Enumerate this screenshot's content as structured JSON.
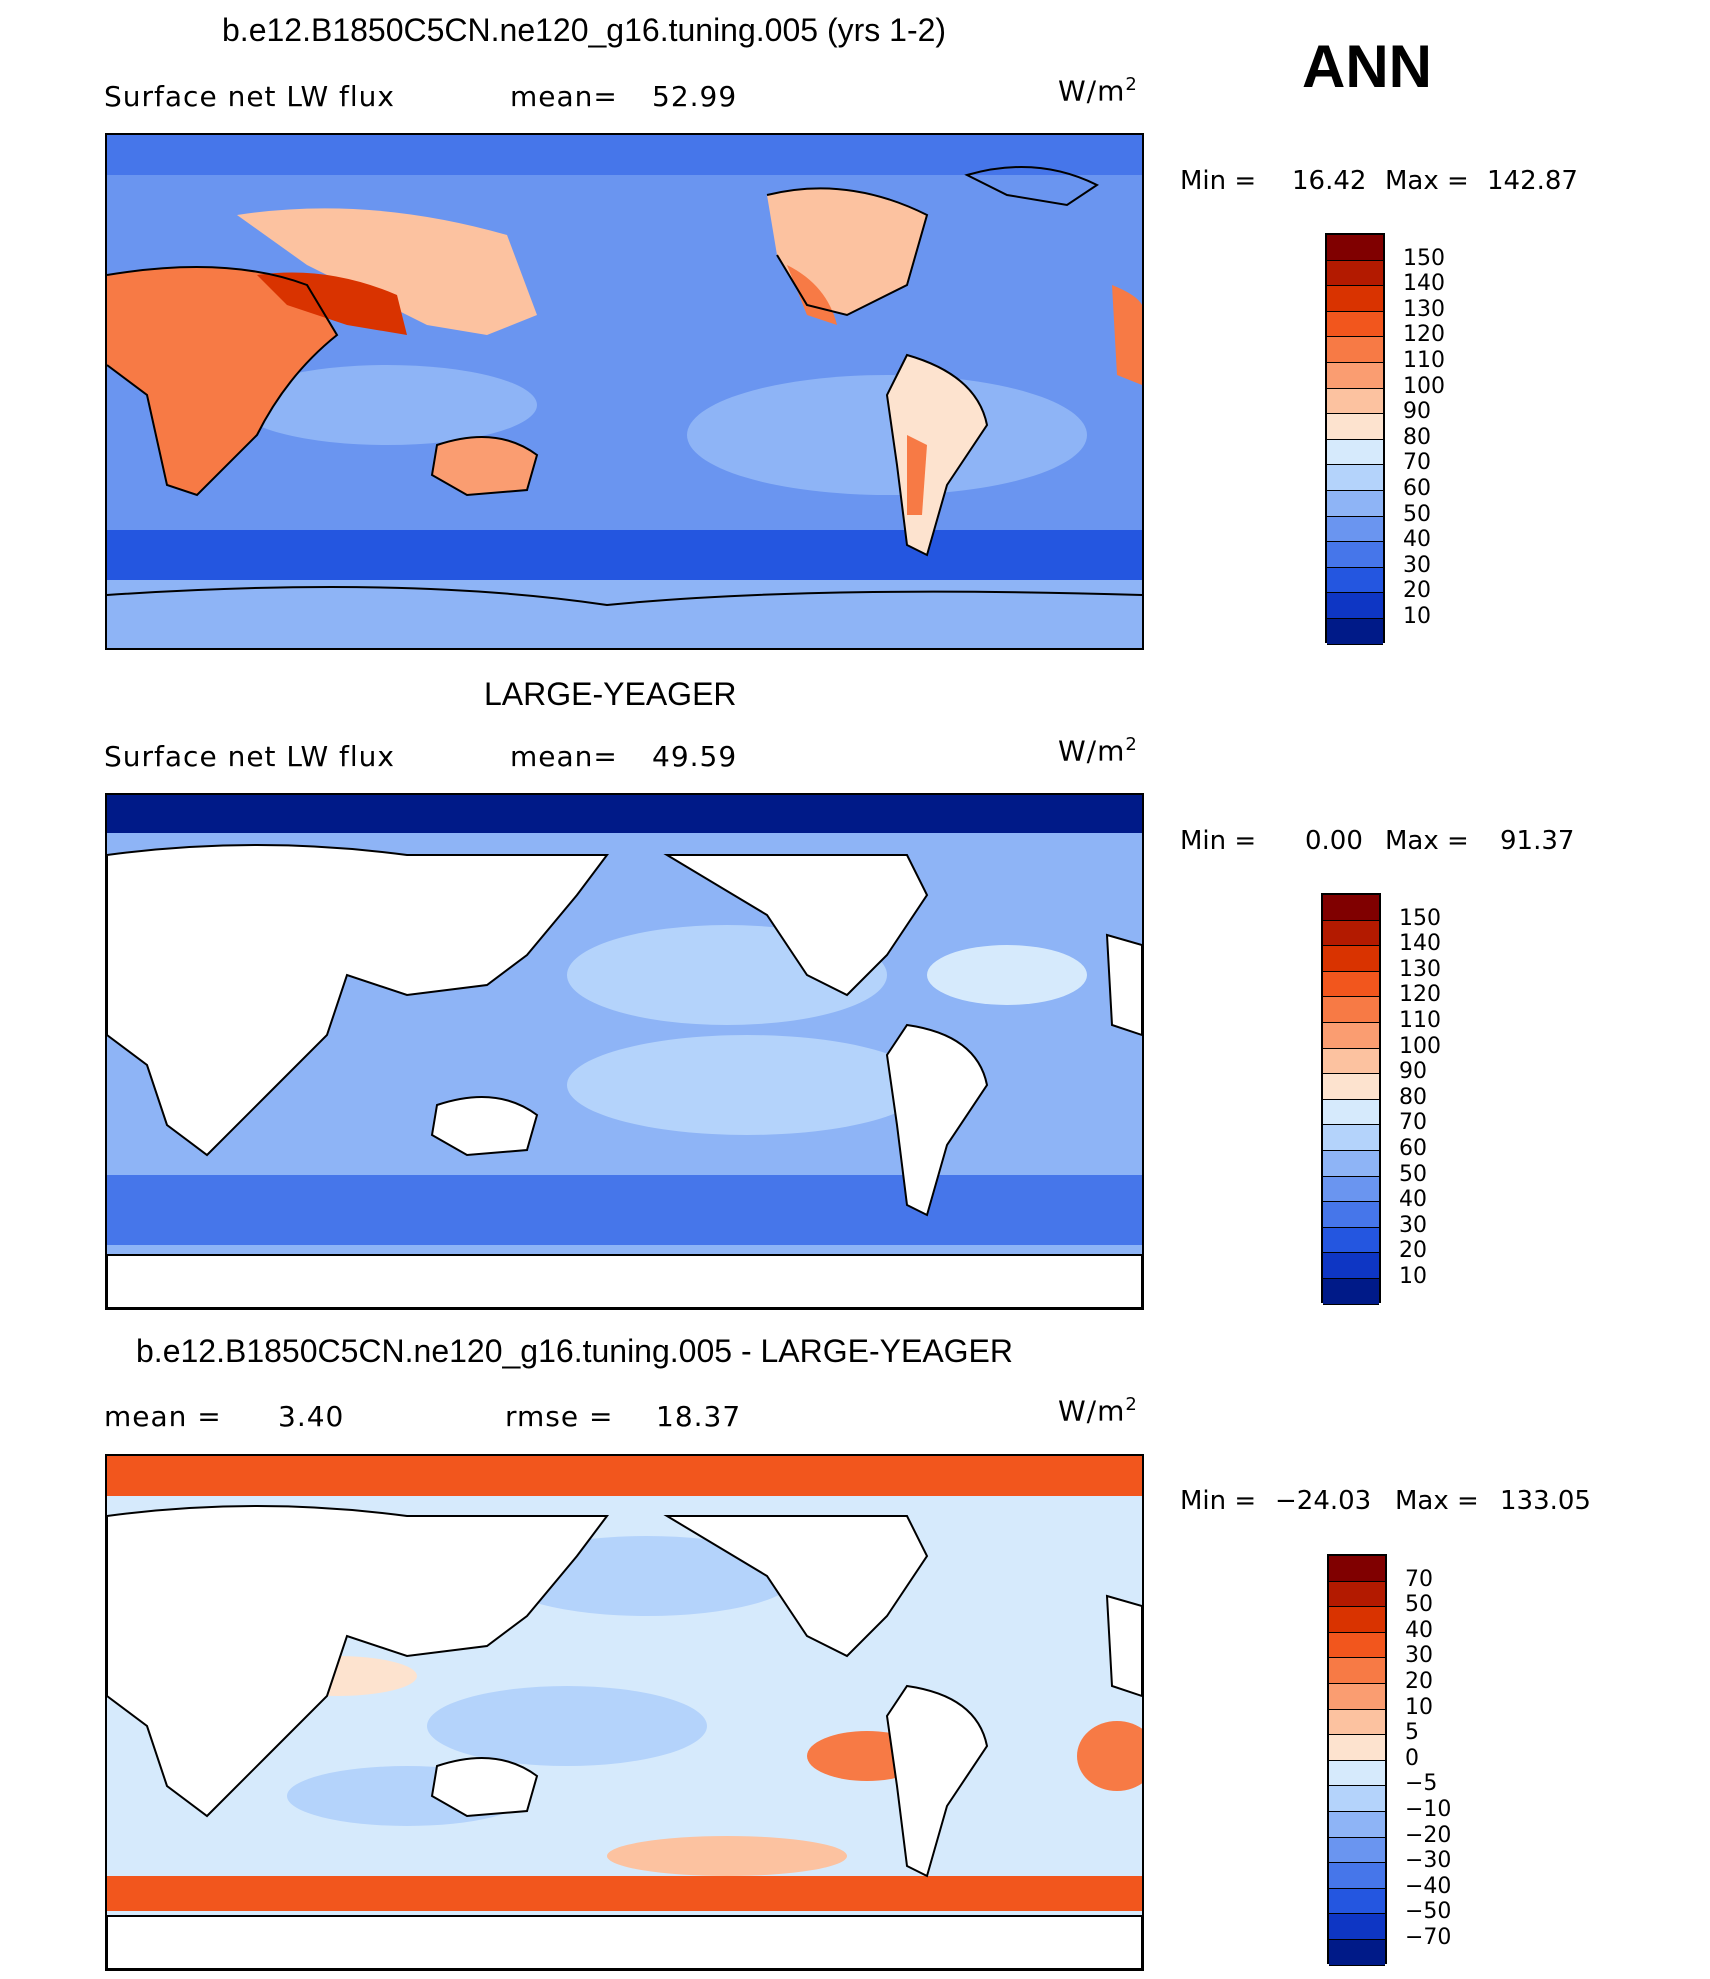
{
  "season": "ANN",
  "panels": [
    {
      "title": "b.e12.B1850C5CN.ne120_g16.tuning.005 (yrs 1-2)",
      "var_label": "Surface net LW flux",
      "stat1_label": "mean=",
      "stat1_value": "52.99",
      "stat2_label": "",
      "stat2_value": "",
      "units": "W/m",
      "units_sup": "2",
      "min_label": "Min =",
      "min_value": "16.42",
      "max_label": "Max =",
      "max_value": "142.87",
      "legend_labels": [
        "150",
        "140",
        "130",
        "120",
        "110",
        "100",
        "90",
        "80",
        "70",
        "60",
        "50",
        "40",
        "30",
        "20",
        "10"
      ],
      "legend_colors": [
        "#800000",
        "#b31a00",
        "#d93300",
        "#f2561d",
        "#f77a45",
        "#fa9d71",
        "#fcc2a0",
        "#fde3cf",
        "#d6eafc",
        "#b4d3fb",
        "#8eb4f6",
        "#6a95f0",
        "#4676ea",
        "#2456e0",
        "#0e36c4",
        "#001a88"
      ]
    },
    {
      "title": "LARGE-YEAGER",
      "var_label": "Surface net LW flux",
      "stat1_label": "mean=",
      "stat1_value": "49.59",
      "stat2_label": "",
      "stat2_value": "",
      "units": "W/m",
      "units_sup": "2",
      "min_label": "Min =",
      "min_value": "0.00",
      "max_label": "Max =",
      "max_value": "91.37",
      "legend_labels": [
        "150",
        "140",
        "130",
        "120",
        "110",
        "100",
        "90",
        "80",
        "70",
        "60",
        "50",
        "40",
        "30",
        "20",
        "10"
      ],
      "legend_colors": [
        "#800000",
        "#b31a00",
        "#d93300",
        "#f2561d",
        "#f77a45",
        "#fa9d71",
        "#fcc2a0",
        "#fde3cf",
        "#d6eafc",
        "#b4d3fb",
        "#8eb4f6",
        "#6a95f0",
        "#4676ea",
        "#2456e0",
        "#0e36c4",
        "#001a88"
      ]
    },
    {
      "title": "b.e12.B1850C5CN.ne120_g16.tuning.005 - LARGE-YEAGER",
      "var_label": "",
      "stat1_label": "mean =",
      "stat1_value": "3.40",
      "stat2_label": "rmse =",
      "stat2_value": "18.37",
      "units": "W/m",
      "units_sup": "2",
      "min_label": "Min =",
      "min_value": "−24.03",
      "max_label": "Max =",
      "max_value": "133.05",
      "legend_labels": [
        "70",
        "50",
        "40",
        "30",
        "20",
        "10",
        "5",
        "0",
        "−5",
        "−10",
        "−20",
        "−30",
        "−40",
        "−50",
        "−70"
      ],
      "legend_colors": [
        "#800000",
        "#b31a00",
        "#d93300",
        "#f2561d",
        "#f77a45",
        "#fa9d71",
        "#fcc2a0",
        "#fde3cf",
        "#d6eafc",
        "#b4d3fb",
        "#8eb4f6",
        "#6a95f0",
        "#4676ea",
        "#2456e0",
        "#0e36c4",
        "#001a88"
      ]
    }
  ]
}
